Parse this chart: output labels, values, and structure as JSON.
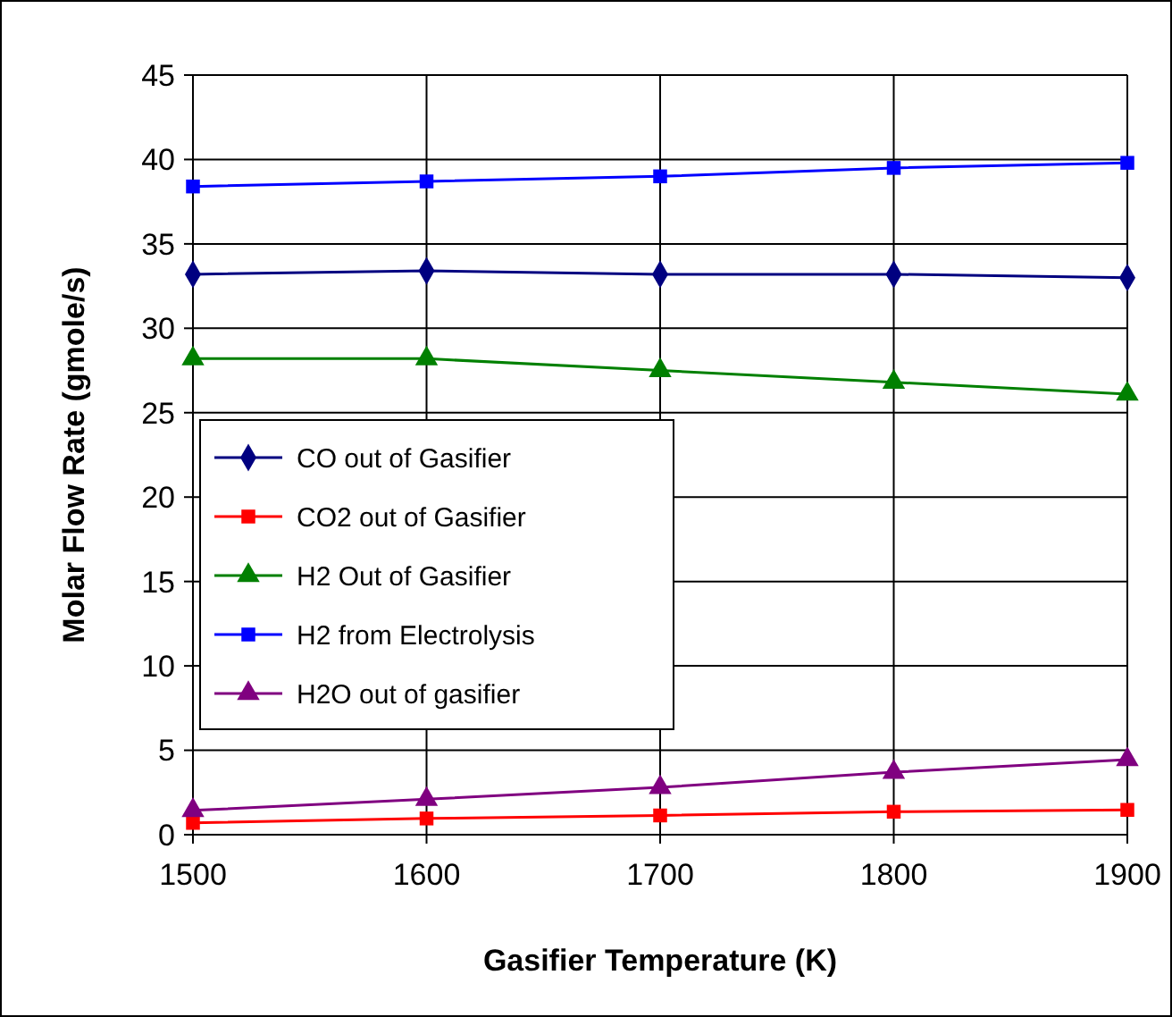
{
  "chart_data": {
    "type": "line",
    "xlabel": "Gasifier Temperature (K)",
    "ylabel": "Molar Flow Rate (gmole/s)",
    "x": [
      1500,
      1600,
      1700,
      1800,
      1900
    ],
    "series": [
      {
        "name": "CO out of Gasifier",
        "color": "#000080",
        "marker": "diamond",
        "values": [
          33.2,
          33.4,
          33.2,
          33.2,
          33.0
        ]
      },
      {
        "name": "CO2 out of Gasifier",
        "color": "#ff0000",
        "marker": "square",
        "values": [
          0.7,
          0.96,
          1.14,
          1.36,
          1.47
        ]
      },
      {
        "name": "H2 Out of Gasifier",
        "color": "#008000",
        "marker": "triangle",
        "values": [
          28.2,
          28.2,
          27.5,
          26.8,
          26.1
        ]
      },
      {
        "name": "H2 from Electrolysis",
        "color": "#0000ff",
        "marker": "square",
        "values": [
          38.4,
          38.7,
          39.0,
          39.5,
          39.8
        ]
      },
      {
        "name": "H2O out of gasifier",
        "color": "#800080",
        "marker": "triangle",
        "values": [
          1.44,
          2.1,
          2.8,
          3.7,
          4.45
        ]
      }
    ],
    "xlim": [
      1500,
      1900
    ],
    "xticks": [
      1500,
      1600,
      1700,
      1800,
      1900
    ],
    "ylim": [
      0,
      45
    ],
    "yticks": [
      0,
      5,
      10,
      15,
      20,
      25,
      30,
      35,
      40,
      45
    ],
    "grid": true,
    "legend": "left",
    "line_style": "solid"
  }
}
